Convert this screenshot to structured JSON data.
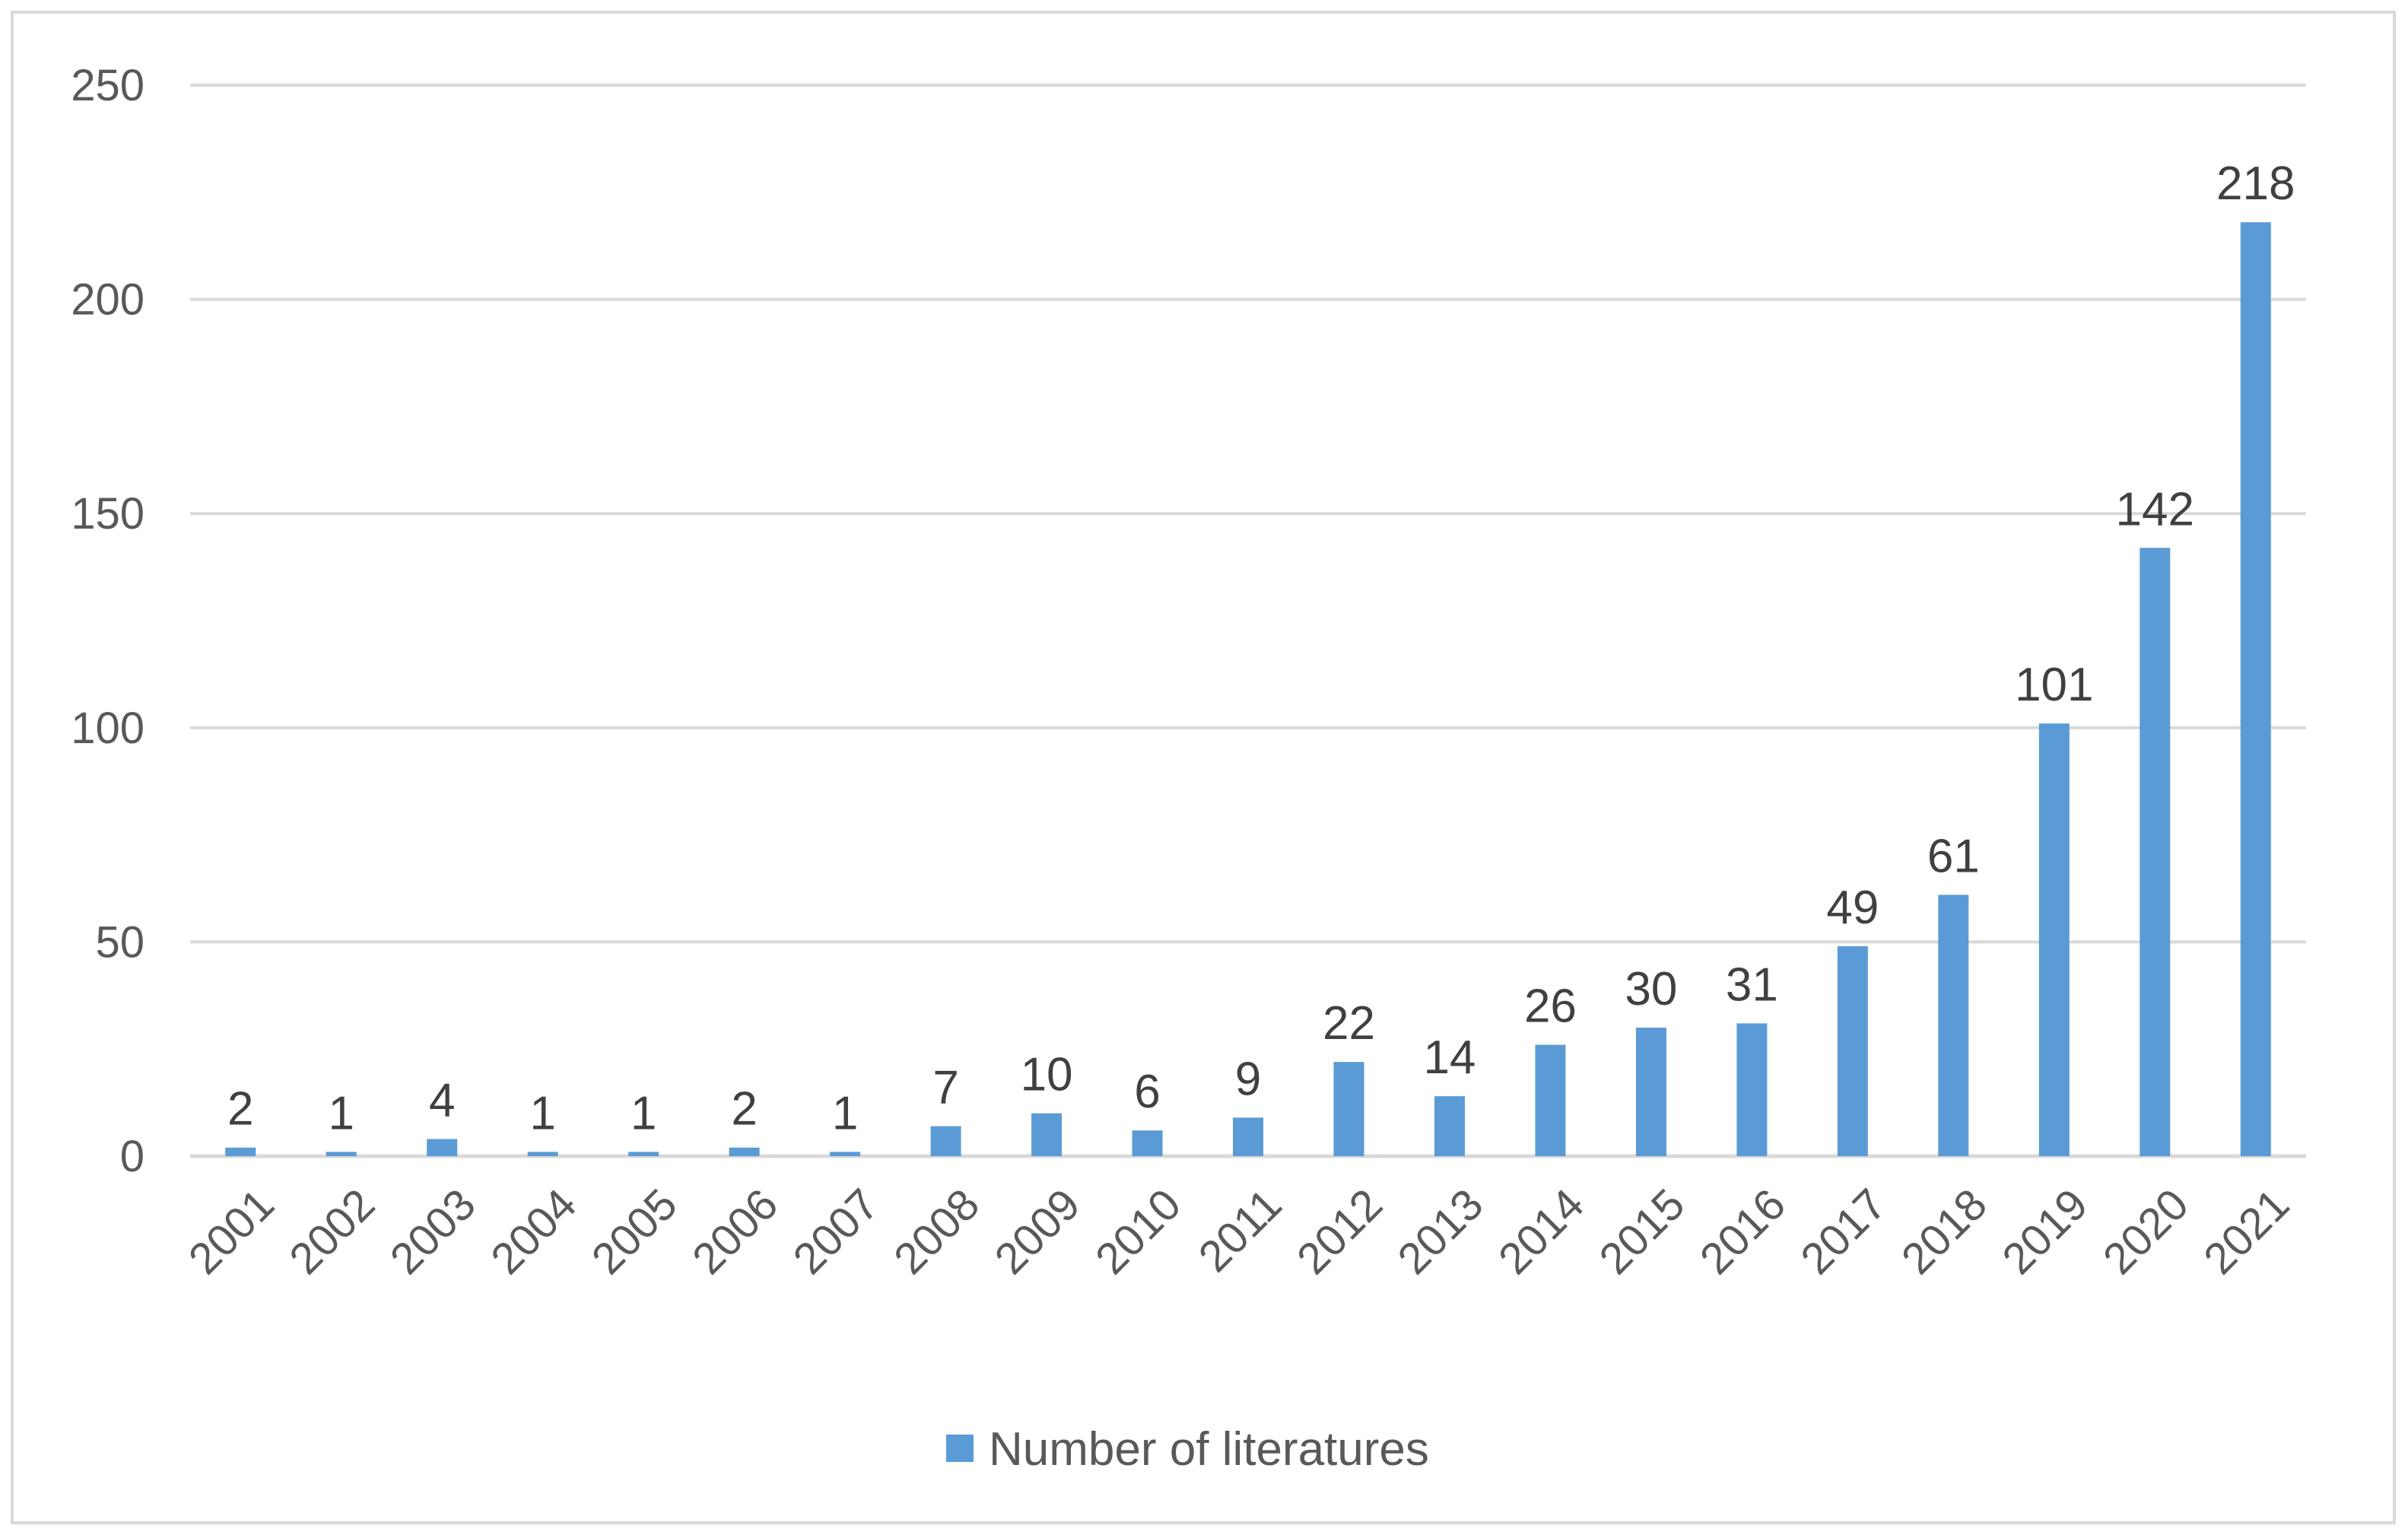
{
  "chart_data": {
    "type": "bar",
    "title": "",
    "xlabel": "",
    "ylabel": "",
    "categories": [
      "2001",
      "2002",
      "2003",
      "2004",
      "2005",
      "2006",
      "2007",
      "2008",
      "2009",
      "2010",
      "2011",
      "2012",
      "2013",
      "2014",
      "2015",
      "2016",
      "2017",
      "2018",
      "2019",
      "2020",
      "2021"
    ],
    "series": [
      {
        "name": "Number of literatures",
        "values": [
          2,
          1,
          4,
          1,
          1,
          2,
          1,
          7,
          10,
          6,
          9,
          22,
          14,
          26,
          30,
          31,
          49,
          61,
          101,
          142,
          218
        ],
        "color": "#5b9bd5"
      }
    ],
    "ylim": [
      0,
      250
    ],
    "yticks": [
      0,
      50,
      100,
      150,
      200,
      250
    ],
    "grid": "horizontal",
    "legend_position": "bottom",
    "data_labels": true,
    "x_tick_rotation": -45
  },
  "colors": {
    "gridline": "#d9d9d9",
    "frame": "#d9d9d9",
    "tick_text": "#595959",
    "label_text": "#404040"
  }
}
